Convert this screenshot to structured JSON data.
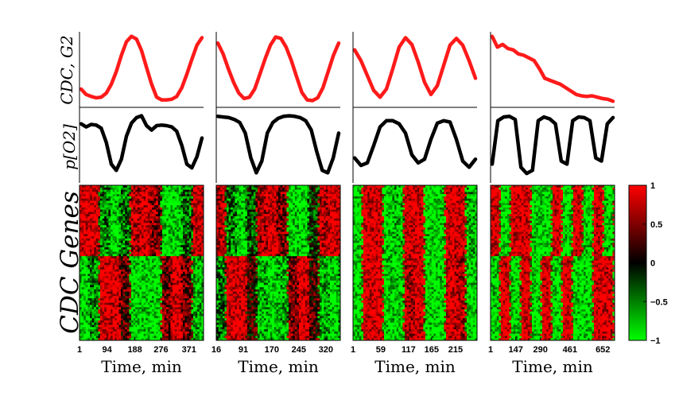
{
  "chart_data": {
    "type": "heatmap",
    "row_labels": {
      "top": "CDC, G2",
      "middle": "p[O2]",
      "bottom": "CDC Genes"
    },
    "xlabel": "Time, min",
    "colors": {
      "signal": "#ff1a1a",
      "oxygen": "#000000",
      "high": "#ff0000",
      "mid": "#000000",
      "low": "#00ff00"
    },
    "colorbar": {
      "range": [
        -1,
        1
      ],
      "ticks": [
        {
          "value": 1,
          "label": "1"
        },
        {
          "value": 0.5,
          "label": "0.5"
        },
        {
          "value": 0,
          "label": "0"
        },
        {
          "value": -0.5,
          "label": "−0.5"
        },
        {
          "value": -1,
          "label": "−1"
        }
      ]
    },
    "panels": [
      {
        "xlim": [
          1,
          420
        ],
        "xticks": [
          {
            "value": 1,
            "label": "1"
          },
          {
            "value": 94,
            "label": "94"
          },
          {
            "value": 188,
            "label": "188"
          },
          {
            "value": 276,
            "label": "276"
          },
          {
            "value": 371,
            "label": "371"
          }
        ],
        "cdc_g2": [
          0.2,
          0.12,
          0.09,
          0.07,
          0.08,
          0.14,
          0.27,
          0.46,
          0.7,
          0.9,
          0.98,
          0.94,
          0.77,
          0.52,
          0.27,
          0.08,
          0.04,
          0.04,
          0.05,
          0.09,
          0.22,
          0.42,
          0.64,
          0.85,
          0.96
        ],
        "oxygen": [
          0.85,
          0.8,
          0.84,
          0.83,
          0.78,
          0.55,
          0.2,
          0.1,
          0.28,
          0.65,
          0.86,
          0.95,
          0.98,
          0.82,
          0.75,
          0.82,
          0.83,
          0.82,
          0.8,
          0.73,
          0.5,
          0.2,
          0.14,
          0.32,
          0.62
        ],
        "heatmap_pattern": [
          1,
          1,
          -0.5,
          -1,
          -0.5,
          0.8,
          1,
          0.6,
          -1,
          -1,
          -0.4,
          1
        ]
      },
      {
        "xlim": [
          16,
          360
        ],
        "xticks": [
          {
            "value": 16,
            "label": "16"
          },
          {
            "value": 91,
            "label": "91"
          },
          {
            "value": 170,
            "label": "170"
          },
          {
            "value": 245,
            "label": "245"
          },
          {
            "value": 320,
            "label": "320"
          }
        ],
        "cdc_g2": [
          0.88,
          0.72,
          0.5,
          0.3,
          0.14,
          0.06,
          0.08,
          0.2,
          0.42,
          0.65,
          0.85,
          0.97,
          0.95,
          0.82,
          0.62,
          0.38,
          0.15,
          0.04,
          0.03,
          0.07,
          0.22,
          0.46,
          0.7,
          0.88
        ],
        "oxygen": [
          0.97,
          0.96,
          0.95,
          0.92,
          0.87,
          0.7,
          0.3,
          0.06,
          0.25,
          0.7,
          0.87,
          0.94,
          0.97,
          0.98,
          0.97,
          0.95,
          0.9,
          0.75,
          0.4,
          0.1,
          0.06,
          0.3,
          0.7
        ],
        "heatmap_pattern": [
          0.8,
          -0.5,
          -1,
          -0.3,
          0.8,
          1,
          0.5,
          -1,
          -1,
          -0.2,
          0.8,
          1
        ]
      },
      {
        "xlim": [
          1,
          260
        ],
        "xticks": [
          {
            "value": 1,
            "label": "1"
          },
          {
            "value": 59,
            "label": "59"
          },
          {
            "value": 117,
            "label": "117"
          },
          {
            "value": 165,
            "label": "165"
          },
          {
            "value": 215,
            "label": "215"
          }
        ],
        "cdc_g2": [
          0.78,
          0.62,
          0.4,
          0.18,
          0.08,
          0.2,
          0.5,
          0.82,
          0.96,
          0.86,
          0.6,
          0.3,
          0.12,
          0.25,
          0.55,
          0.85,
          0.95,
          0.85,
          0.62,
          0.36
        ],
        "oxygen": [
          0.3,
          0.18,
          0.22,
          0.5,
          0.8,
          0.9,
          0.9,
          0.85,
          0.7,
          0.35,
          0.22,
          0.28,
          0.6,
          0.86,
          0.9,
          0.88,
          0.6,
          0.25,
          0.15,
          0.28
        ],
        "heatmap_pattern": [
          -1,
          1,
          1,
          -1,
          -0.8,
          1,
          1,
          -1,
          -1,
          1,
          1,
          -0.8
        ]
      },
      {
        "xlim": [
          1,
          720
        ],
        "xticks": [
          {
            "value": 1,
            "label": "1"
          },
          {
            "value": 147,
            "label": "147"
          },
          {
            "value": 290,
            "label": "290"
          },
          {
            "value": 461,
            "label": "461"
          },
          {
            "value": 652,
            "label": "652"
          }
        ],
        "cdc_g2": [
          0.98,
          0.82,
          0.86,
          0.8,
          0.78,
          0.72,
          0.7,
          0.66,
          0.62,
          0.5,
          0.36,
          0.33,
          0.3,
          0.27,
          0.22,
          0.17,
          0.12,
          0.1,
          0.09,
          0.1,
          0.08,
          0.06,
          0.05,
          0.02
        ],
        "oxygen": [
          0.2,
          0.9,
          0.96,
          0.97,
          0.92,
          0.15,
          0.05,
          0.1,
          0.9,
          0.96,
          0.93,
          0.85,
          0.25,
          0.2,
          0.9,
          0.96,
          0.95,
          0.9,
          0.3,
          0.25,
          0.85,
          0.95
        ],
        "heatmap_pattern": [
          1,
          -1,
          1,
          1,
          -1,
          -1,
          1,
          -1,
          1,
          -1,
          1,
          -1
        ]
      }
    ]
  }
}
